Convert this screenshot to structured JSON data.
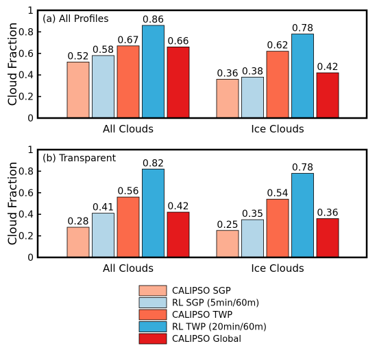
{
  "colors": [
    "#fcae91",
    "#b3d6e8",
    "#fb6a4a",
    "#36acdb",
    "#e41a1c"
  ],
  "chart_data": [
    {
      "type": "bar",
      "title": "(a) All Profiles",
      "ylabel": "Cloud Fraction",
      "ylim": [
        0,
        1
      ],
      "yticks": [
        "0",
        "0.2",
        "0.4",
        "0.6",
        "0.8",
        "1"
      ],
      "categories": [
        "All Clouds",
        "Ice Clouds"
      ],
      "series": [
        {
          "name": "CALIPSO SGP",
          "values": [
            0.52,
            0.36
          ],
          "labels": [
            "0.52",
            "0.36"
          ]
        },
        {
          "name": "RL SGP (5min/60m)",
          "values": [
            0.58,
            0.38
          ],
          "labels": [
            "0.58",
            "0.38"
          ]
        },
        {
          "name": "CALIPSO TWP",
          "values": [
            0.67,
            0.62
          ],
          "labels": [
            "0.67",
            "0.62"
          ]
        },
        {
          "name": "RL TWP (20min/60m)",
          "values": [
            0.86,
            0.78
          ],
          "labels": [
            "0.86",
            "0.78"
          ]
        },
        {
          "name": "CALIPSO Global",
          "values": [
            0.66,
            0.42
          ],
          "labels": [
            "0.66",
            "0.42"
          ]
        }
      ]
    },
    {
      "type": "bar",
      "title": "(b) Transparent",
      "ylabel": "Cloud Fraction",
      "ylim": [
        0,
        1
      ],
      "yticks": [
        "0",
        "0.2",
        "0.4",
        "0.6",
        "0.8",
        "1"
      ],
      "categories": [
        "All Clouds",
        "Ice Clouds"
      ],
      "series": [
        {
          "name": "CALIPSO SGP",
          "values": [
            0.28,
            0.25
          ],
          "labels": [
            "0.28",
            "0.25"
          ]
        },
        {
          "name": "RL SGP (5min/60m)",
          "values": [
            0.41,
            0.35
          ],
          "labels": [
            "0.41",
            "0.35"
          ]
        },
        {
          "name": "CALIPSO TWP",
          "values": [
            0.56,
            0.54
          ],
          "labels": [
            "0.56",
            "0.54"
          ]
        },
        {
          "name": "RL TWP (20min/60m)",
          "values": [
            0.82,
            0.78
          ],
          "labels": [
            "0.82",
            "0.78"
          ]
        },
        {
          "name": "CALIPSO Global",
          "values": [
            0.42,
            0.36
          ],
          "labels": [
            "0.42",
            "0.36"
          ]
        }
      ]
    }
  ],
  "legend": {
    "entries": [
      "CALIPSO SGP",
      "RL SGP (5min/60m)",
      "CALIPSO TWP",
      "RL TWP (20min/60m)",
      "CALIPSO Global"
    ]
  }
}
